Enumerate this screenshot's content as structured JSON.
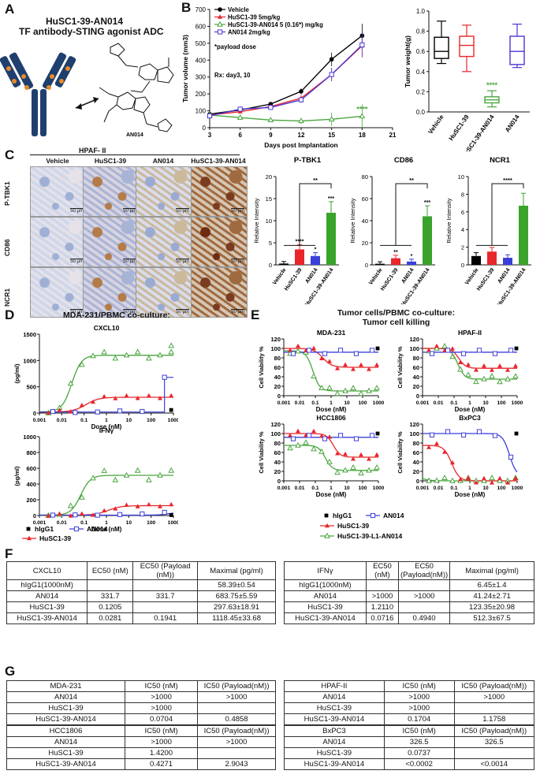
{
  "panels": {
    "a": "A",
    "b": "B",
    "c": "C",
    "d": "D",
    "e": "E",
    "f": "F",
    "g": "G"
  },
  "panelA": {
    "title1": "HuSC1-39-AN014",
    "title2": "TF antibody-STING agonist ADC",
    "compound": "AN014"
  },
  "panelB": {
    "legend": [
      "Vehicle",
      "HuSC1-39 5mg/kg",
      "HuSC1-39-AN014 5 (0.16*) mg/kg",
      "AN014 2mg/kg"
    ],
    "note1": "*payload dose",
    "note2": "Rx: day3, 10",
    "sig": "****",
    "bar_sig": "****",
    "colors": {
      "vehicle": "#000000",
      "husc": "#e8262b",
      "adc": "#4aa63f",
      "an014": "#4a36d6"
    }
  },
  "chart_data": [
    {
      "type": "line",
      "title": "Tumor volume",
      "xlabel": "Days post Implantation",
      "ylabel": "Tumor volume (mm3)",
      "x": [
        3,
        6,
        9,
        12,
        15,
        18
      ],
      "xlim": [
        3,
        21
      ],
      "ylim": [
        0,
        700
      ],
      "xticks": [
        3,
        6,
        9,
        12,
        15,
        18,
        21
      ],
      "yticks": [
        0,
        100,
        200,
        300,
        400,
        500,
        600,
        700
      ],
      "series": [
        {
          "name": "Vehicle",
          "values": [
            80,
            105,
            140,
            215,
            405,
            545
          ]
        },
        {
          "name": "HuSC1-39 5mg/kg",
          "values": [
            75,
            95,
            125,
            175,
            315,
            485
          ]
        },
        {
          "name": "HuSC1-39-AN014 5 (0.16*) mg/kg",
          "values": [
            75,
            60,
            45,
            40,
            50,
            68
          ]
        },
        {
          "name": "AN014 2mg/kg",
          "values": [
            70,
            110,
            120,
            165,
            315,
            490
          ]
        }
      ]
    },
    {
      "type": "box",
      "title": "Tumor weight",
      "ylabel": "Tumor weight(g)",
      "ylim": [
        0,
        1.0
      ],
      "yticks": [
        "0.0",
        "0.2",
        "0.4",
        "0.6",
        "0.8",
        "1.0"
      ],
      "categories": [
        "Vehicle",
        "HuSC1-39",
        "HuSC1-39-AN014",
        "AN014"
      ],
      "boxes": [
        [
          0.48,
          0.53,
          0.6,
          0.74,
          0.9
        ],
        [
          0.4,
          0.55,
          0.66,
          0.75,
          0.86
        ],
        [
          0.05,
          0.09,
          0.12,
          0.15,
          0.21
        ],
        [
          0.44,
          0.47,
          0.6,
          0.75,
          0.87
        ]
      ]
    },
    {
      "type": "bar",
      "title": "P-TBK1",
      "ylabel": "Relative Intensity",
      "ylim": [
        0,
        20
      ],
      "yticks": [
        0,
        5,
        10,
        15,
        20
      ],
      "categories": [
        "Vehicle",
        "HuSC1-39",
        "AN014",
        "HuSC1-39-AN014"
      ],
      "values": [
        0.3,
        3.5,
        2.0,
        11.8
      ],
      "sig": [
        "",
        "****",
        "*",
        "***"
      ],
      "bracket": "**"
    },
    {
      "type": "bar",
      "title": "CD86",
      "ylabel": "Relative Intensity",
      "ylim": [
        0,
        80
      ],
      "yticks": [
        0,
        20,
        40,
        60,
        80
      ],
      "categories": [
        "Vehicle",
        "HuSC1-39",
        "AN014",
        "HuSC1-39-AN014"
      ],
      "values": [
        1,
        6,
        3,
        44
      ],
      "sig": [
        "",
        "**",
        "*",
        "***"
      ],
      "bracket": "**"
    },
    {
      "type": "bar",
      "title": "NCR1",
      "ylabel": "Relative Intensity",
      "ylim": [
        0,
        10
      ],
      "yticks": [
        0,
        2,
        4,
        6,
        8,
        10
      ],
      "categories": [
        "Vehicle",
        "HuSC1-39",
        "AN014",
        "HuSC1-39-AN014"
      ],
      "values": [
        1.0,
        1.5,
        0.8,
        6.7
      ],
      "sig": [
        "",
        "",
        "",
        ""
      ],
      "bracket": "****"
    }
  ],
  "panelC": {
    "cells": "HPAF- II",
    "cols": [
      "Vehicle",
      "HuSC1-39",
      "AN014",
      "HuSC1-39-AN014"
    ],
    "rows": [
      "P-TBK1",
      "CD86",
      "NCR1"
    ],
    "scalebar": "50 µm"
  },
  "panelD": {
    "title": "MDA-231/PBMC co-culture:",
    "plot1": "CXCL10",
    "plot2": "IFNγ",
    "ylabel": "(pg/ml)",
    "xlabel": "Dose (nM)",
    "yticks1": [
      "0",
      "500",
      "1000",
      "1500"
    ],
    "yticks2": [
      "0",
      "200",
      "400",
      "600",
      "800",
      "1000"
    ],
    "xticks": [
      "0.001",
      "0.01",
      "0.1",
      "1",
      "10",
      "100",
      "1000"
    ]
  },
  "panelE": {
    "title1": "Tumor cells/PBMC co-culture:",
    "title2": "Tumor cell killing",
    "plots": [
      "MDA-231",
      "HPAF-II",
      "HCC1806",
      "BxPC3"
    ],
    "ylabel": "Cell Viability %",
    "xlabel": "Dose (nM)",
    "yticks": [
      "0",
      "20",
      "40",
      "60",
      "80",
      "100",
      "120"
    ],
    "xticks": [
      "0.001",
      "0.01",
      "0.1",
      "1",
      "10",
      "100",
      "1000"
    ]
  },
  "legendD": [
    "hIgG1",
    "AN014",
    "HuSC1-39",
    "HuSC1-39-L1-AN014"
  ],
  "tableF1": {
    "header": [
      "CXCL10",
      "EC50 (nM)",
      "EC50 (Payload (nM))",
      "Maximal (pg/ml)"
    ],
    "rows": [
      [
        "hIgG1(1000nM)",
        "",
        "",
        "58.39±0.54"
      ],
      [
        "AN014",
        "331.7",
        "331.7",
        "683.75±5.59"
      ],
      [
        "HuSC1-39",
        "0.1205",
        "",
        "297.63±18.91"
      ],
      [
        "HuSC1-39-AN014",
        "0.0281",
        "0.1941",
        "1118.45±33.68"
      ]
    ]
  },
  "tableF2": {
    "header": [
      "IFNγ",
      "EC50 (nM)",
      "EC50 (Payload(nM))",
      "Maximal (pg/ml)"
    ],
    "rows": [
      [
        "hIgG1(1000nM)",
        "",
        "",
        "6.45±1.4"
      ],
      [
        "AN014",
        ">1000",
        ">1000",
        "41.24±2.71"
      ],
      [
        "HuSC1-39",
        "1.2110",
        "",
        "123.35±20.98"
      ],
      [
        "HuSC1-39-AN014",
        "0.0716",
        "0.4940",
        "512.3±67.5"
      ]
    ]
  },
  "tableG1": {
    "header": [
      "MDA-231",
      "IC50 (nM)",
      "IC50 (Payload(nM))"
    ],
    "rows": [
      [
        "AN014",
        ">1000",
        ">1000"
      ],
      [
        "HuSC1-39",
        ">1000",
        ""
      ],
      [
        "HuSC1-39-AN014",
        "0.0704",
        "0.4858"
      ]
    ]
  },
  "tableG2": {
    "header": [
      "HPAF-II",
      "IC50 (nM)",
      "IC50 (Payload(nM))"
    ],
    "rows": [
      [
        "AN014",
        ">1000",
        ">1000"
      ],
      [
        "HuSC1-39",
        ">1000",
        ""
      ],
      [
        "HuSC1-39-AN014",
        "0.1704",
        "1.1758"
      ]
    ]
  },
  "tableG3": {
    "header": [
      "HCC1806",
      "IC50 (nM)",
      "IC50 (Payload(nM))"
    ],
    "rows": [
      [
        "AN014",
        ">1000",
        ">1000"
      ],
      [
        "HuSC1-39",
        "1.4200",
        ""
      ],
      [
        "HuSC1-39-AN014",
        "0.4271",
        "2.9043"
      ]
    ]
  },
  "tableG4": {
    "header": [
      "BxPC3",
      "IC50 (nM)",
      "IC50 (Payload(nM))"
    ],
    "rows": [
      [
        "AN014",
        "326.5",
        "326.5"
      ],
      [
        "HuSC1-39",
        "0.0737",
        ""
      ],
      [
        "HuSC1-39-AN014",
        "<0.0002",
        "<0.0014"
      ]
    ]
  }
}
